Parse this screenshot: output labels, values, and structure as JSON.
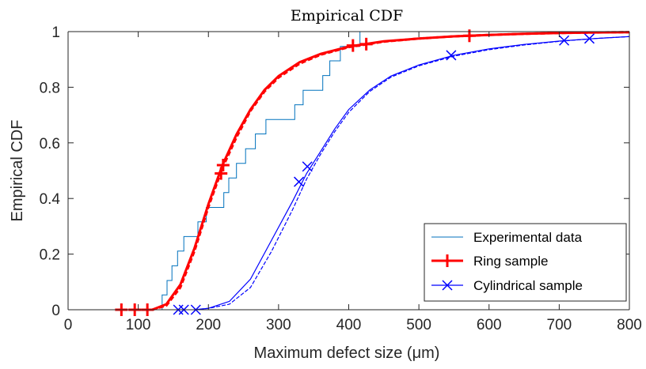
{
  "chart_data": {
    "type": "line",
    "title": "Empirical CDF",
    "xlabel": "Maximum defect size (μm)",
    "ylabel": "Empirical CDF",
    "xlim": [
      0,
      800
    ],
    "ylim": [
      0,
      1
    ],
    "xticks": [
      0,
      100,
      200,
      300,
      400,
      500,
      600,
      700,
      800
    ],
    "yticks": [
      0,
      0.2,
      0.4,
      0.6,
      0.8,
      1
    ],
    "ytick_labels": [
      "0",
      "0.2",
      "0.4",
      "0.6",
      "0.8",
      "1"
    ],
    "grid": false,
    "legend_position": "bottom-right",
    "series": [
      {
        "name": "Experimental data",
        "color": "#0072BD",
        "style": "stairs",
        "steps": [
          [
            130,
            0.0
          ],
          [
            134,
            0.053
          ],
          [
            141,
            0.105
          ],
          [
            148,
            0.158
          ],
          [
            156,
            0.211
          ],
          [
            165,
            0.263
          ],
          [
            185,
            0.316
          ],
          [
            197,
            0.368
          ],
          [
            222,
            0.421
          ],
          [
            229,
            0.474
          ],
          [
            240,
            0.526
          ],
          [
            253,
            0.579
          ],
          [
            267,
            0.632
          ],
          [
            282,
            0.684
          ],
          [
            323,
            0.737
          ],
          [
            335,
            0.789
          ],
          [
            363,
            0.842
          ],
          [
            373,
            0.895
          ],
          [
            388,
            0.947
          ],
          [
            416,
            1.0
          ]
        ]
      },
      {
        "name": "Ring sample",
        "color": "#FF0000",
        "marker": "+",
        "curves": [
          [
            [
              120,
              0.0
            ],
            [
              140,
              0.02
            ],
            [
              160,
              0.09
            ],
            [
              180,
              0.22
            ],
            [
              200,
              0.38
            ],
            [
              220,
              0.52
            ],
            [
              240,
              0.63
            ],
            [
              260,
              0.72
            ],
            [
              280,
              0.79
            ],
            [
              300,
              0.84
            ],
            [
              330,
              0.89
            ],
            [
              360,
              0.92
            ],
            [
              400,
              0.946
            ],
            [
              450,
              0.965
            ],
            [
              500,
              0.975
            ],
            [
              550,
              0.983
            ],
            [
              600,
              0.988
            ],
            [
              650,
              0.992
            ],
            [
              700,
              0.995
            ],
            [
              750,
              0.997
            ],
            [
              800,
              0.998
            ]
          ],
          [
            [
              120,
              0.0
            ],
            [
              140,
              0.015
            ],
            [
              160,
              0.08
            ],
            [
              180,
              0.21
            ],
            [
              200,
              0.37
            ],
            [
              220,
              0.51
            ],
            [
              240,
              0.62
            ],
            [
              260,
              0.715
            ],
            [
              280,
              0.785
            ],
            [
              300,
              0.835
            ],
            [
              330,
              0.885
            ],
            [
              360,
              0.917
            ],
            [
              400,
              0.944
            ],
            [
              450,
              0.964
            ],
            [
              500,
              0.975
            ],
            [
              550,
              0.983
            ],
            [
              600,
              0.988
            ],
            [
              650,
              0.992
            ],
            [
              700,
              0.995
            ],
            [
              750,
              0.997
            ],
            [
              800,
              0.998
            ]
          ]
        ],
        "markers": [
          [
            76,
            0.0
          ],
          [
            95,
            0.0
          ],
          [
            113,
            0.0
          ],
          [
            218,
            0.49
          ],
          [
            221,
            0.52
          ],
          [
            406,
            0.95
          ],
          [
            425,
            0.955
          ],
          [
            572,
            0.985
          ]
        ]
      },
      {
        "name": "Cylindrical sample",
        "color": "#0000FF",
        "marker": "x",
        "curves": [
          [
            [
              180,
              0.0
            ],
            [
              200,
              0.005
            ],
            [
              230,
              0.03
            ],
            [
              260,
              0.11
            ],
            [
              290,
              0.25
            ],
            [
              320,
              0.39
            ],
            [
              340,
              0.49
            ],
            [
              360,
              0.57
            ],
            [
              380,
              0.65
            ],
            [
              400,
              0.72
            ],
            [
              430,
              0.79
            ],
            [
              460,
              0.84
            ],
            [
              500,
              0.88
            ],
            [
              550,
              0.915
            ],
            [
              600,
              0.938
            ],
            [
              650,
              0.954
            ],
            [
              700,
              0.966
            ],
            [
              750,
              0.975
            ],
            [
              800,
              0.982
            ]
          ],
          [
            [
              180,
              0.0
            ],
            [
              200,
              0.005
            ],
            [
              230,
              0.02
            ],
            [
              260,
              0.08
            ],
            [
              290,
              0.21
            ],
            [
              320,
              0.36
            ],
            [
              340,
              0.47
            ],
            [
              360,
              0.56
            ],
            [
              380,
              0.64
            ],
            [
              400,
              0.71
            ],
            [
              430,
              0.785
            ],
            [
              460,
              0.836
            ],
            [
              500,
              0.877
            ],
            [
              550,
              0.912
            ],
            [
              600,
              0.935
            ],
            [
              650,
              0.952
            ],
            [
              700,
              0.965
            ],
            [
              750,
              0.975
            ],
            [
              800,
              0.982
            ]
          ]
        ],
        "markers": [
          [
            157,
            0.0
          ],
          [
            165,
            0.0
          ],
          [
            182,
            0.0
          ],
          [
            329,
            0.46
          ],
          [
            341,
            0.515
          ],
          [
            546,
            0.915
          ],
          [
            707,
            0.968
          ],
          [
            743,
            0.975
          ]
        ]
      }
    ]
  }
}
